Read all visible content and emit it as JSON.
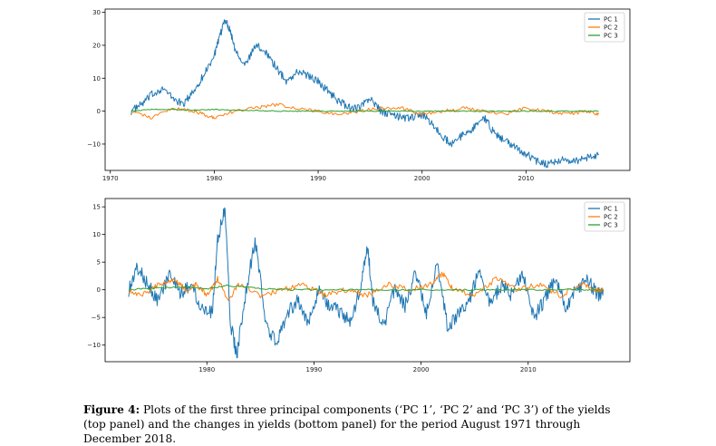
{
  "chart_data": [
    {
      "type": "line",
      "panel": "top",
      "title": "",
      "xlabel": "",
      "ylabel": "",
      "xlim": [
        1969.5,
        2020.0
      ],
      "ylim": [
        -18,
        31
      ],
      "xticks": [
        1970,
        1980,
        1990,
        2000,
        2010
      ],
      "yticks": [
        -10,
        0,
        10,
        20,
        30
      ],
      "ytick_labels": [
        "−10",
        "0",
        "10",
        "20",
        "30"
      ],
      "legend": {
        "position": "top-right",
        "entries": [
          "PC 1",
          "PC 2",
          "PC 3"
        ]
      },
      "series": [
        {
          "name": "PC 1",
          "color": "#1f77b4",
          "x": [
            1972,
            1973,
            1974,
            1975,
            1976,
            1977,
            1978,
            1979,
            1980,
            1980.5,
            1981,
            1981.5,
            1982,
            1983,
            1984,
            1985,
            1986,
            1987,
            1988,
            1989,
            1990,
            1991,
            1992,
            1993,
            1994,
            1995,
            1996,
            1997,
            1998,
            1999,
            2000,
            2001,
            2002,
            2003,
            2004,
            2005,
            2006,
            2007,
            2008,
            2009,
            2010,
            2011,
            2012,
            2013,
            2014,
            2015,
            2016,
            2017
          ],
          "values": [
            0,
            2,
            5,
            7,
            4,
            2,
            6,
            11,
            17,
            22,
            28,
            25,
            19,
            14,
            20,
            18,
            13,
            9,
            12,
            11,
            9,
            6,
            3,
            1,
            1,
            4,
            0,
            -1,
            -2,
            -2,
            -1,
            -4,
            -8,
            -10,
            -7,
            -5,
            -2,
            -7,
            -9,
            -11,
            -13,
            -15,
            -16,
            -15,
            -15,
            -15,
            -14,
            -13
          ]
        },
        {
          "name": "PC 2",
          "color": "#ff7f0e",
          "x": [
            1972,
            1974,
            1976,
            1978,
            1979,
            1980,
            1982,
            1984,
            1986,
            1988,
            1990,
            1992,
            1994,
            1996,
            1998,
            2000,
            2002,
            2004,
            2006,
            2008,
            2010,
            2012,
            2014,
            2016,
            2017
          ],
          "values": [
            0,
            -2,
            1,
            0,
            -1,
            -2,
            0,
            1,
            2,
            1,
            0,
            -1,
            0,
            1,
            1,
            -1,
            0,
            1,
            0,
            -1,
            1,
            0,
            -1,
            0,
            -1
          ]
        },
        {
          "name": "PC 3",
          "color": "#2ca02c",
          "x": [
            1972,
            1974,
            1976,
            1978,
            1980,
            1982,
            1984,
            1986,
            1988,
            1990,
            1992,
            1994,
            1996,
            1998,
            2000,
            2002,
            2004,
            2006,
            2008,
            2010,
            2012,
            2014,
            2016,
            2017
          ],
          "values": [
            0,
            0.5,
            0.5,
            0.3,
            0.5,
            0.3,
            0.2,
            0,
            0,
            0,
            0,
            0,
            0,
            0,
            0,
            0,
            0,
            0,
            0,
            0,
            0,
            0,
            0,
            0
          ]
        }
      ]
    },
    {
      "type": "line",
      "panel": "bottom",
      "title": "",
      "xlabel": "",
      "ylabel": "",
      "xlim": [
        1970.5,
        2019.5
      ],
      "ylim": [
        -13,
        16.5
      ],
      "xticks": [
        1980,
        1990,
        2000,
        2010
      ],
      "yticks": [
        -10,
        -5,
        0,
        5,
        10,
        15
      ],
      "ytick_labels": [
        "−10",
        "−5",
        "0",
        "5",
        "10",
        "15"
      ],
      "legend": {
        "position": "top-right",
        "entries": [
          "PC 1",
          "PC 2",
          "PC 3"
        ]
      },
      "series": [
        {
          "name": "PC 1",
          "color": "#1f77b4",
          "x": [
            1972.7,
            1973.5,
            1974.5,
            1975.5,
            1976.5,
            1977.5,
            1978.5,
            1979.5,
            1980.5,
            1981.0,
            1981.7,
            1982.2,
            1982.8,
            1983.5,
            1984.5,
            1985.5,
            1986.5,
            1987.5,
            1988.5,
            1989.5,
            1990.5,
            1991.5,
            1992.5,
            1993.5,
            1994.5,
            1995.0,
            1995.5,
            1996.5,
            1997.5,
            1998.5,
            1999.5,
            2000.5,
            2001.5,
            2002.5,
            2003.5,
            2004.5,
            2005.5,
            2006.5,
            2007.5,
            2008.5,
            2009.5,
            2010.5,
            2011.5,
            2012.5,
            2013.5,
            2014.5,
            2015.5,
            2016.5,
            2017.0
          ],
          "values": [
            0,
            4,
            1,
            -2,
            3,
            -1,
            1,
            -3,
            -4,
            9,
            15,
            -6,
            -12,
            -2,
            9,
            -6,
            -10,
            -4,
            -2,
            -6,
            0,
            -3,
            -4,
            -6,
            2,
            8,
            -2,
            -7,
            0,
            -3,
            3,
            -4,
            5,
            -7,
            -4,
            -2,
            4,
            -3,
            1,
            -1,
            3,
            -5,
            -2,
            2,
            -3,
            0,
            2,
            -1,
            0
          ]
        },
        {
          "name": "PC 2",
          "color": "#ff7f0e",
          "x": [
            1972.7,
            1974,
            1975.5,
            1977,
            1978,
            1979,
            1980,
            1981,
            1982,
            1983,
            1985,
            1987,
            1989,
            1991,
            1993,
            1995,
            1997,
            1999,
            2001,
            2002,
            2003,
            2005,
            2007,
            2009,
            2011,
            2013,
            2015,
            2016,
            2017
          ],
          "values": [
            0,
            -1,
            1,
            2,
            0,
            1,
            -1,
            2,
            -2,
            1,
            -1,
            0,
            1,
            -1,
            0,
            -1,
            1,
            0,
            1,
            3,
            0,
            -1,
            2,
            0,
            1,
            -1,
            1,
            0,
            0
          ]
        },
        {
          "name": "PC 3",
          "color": "#2ca02c",
          "x": [
            1972.7,
            1975,
            1978,
            1980,
            1982,
            1985,
            1988,
            1991,
            1994,
            1997,
            2000,
            2003,
            2006,
            2009,
            2012,
            2015,
            2017
          ],
          "values": [
            0,
            0.3,
            0.5,
            0.2,
            0.8,
            0.2,
            0,
            0,
            0,
            0,
            0,
            0,
            0,
            0,
            0,
            0,
            0
          ]
        }
      ]
    }
  ],
  "caption": {
    "label": "Figure 4:",
    "text": "Plots of the first three principal components (‘PC 1’, ‘PC 2’ and ‘PC 3’) of the yields (top panel) and the changes in yields (bottom panel) for the period August 1971 through December 2018."
  }
}
